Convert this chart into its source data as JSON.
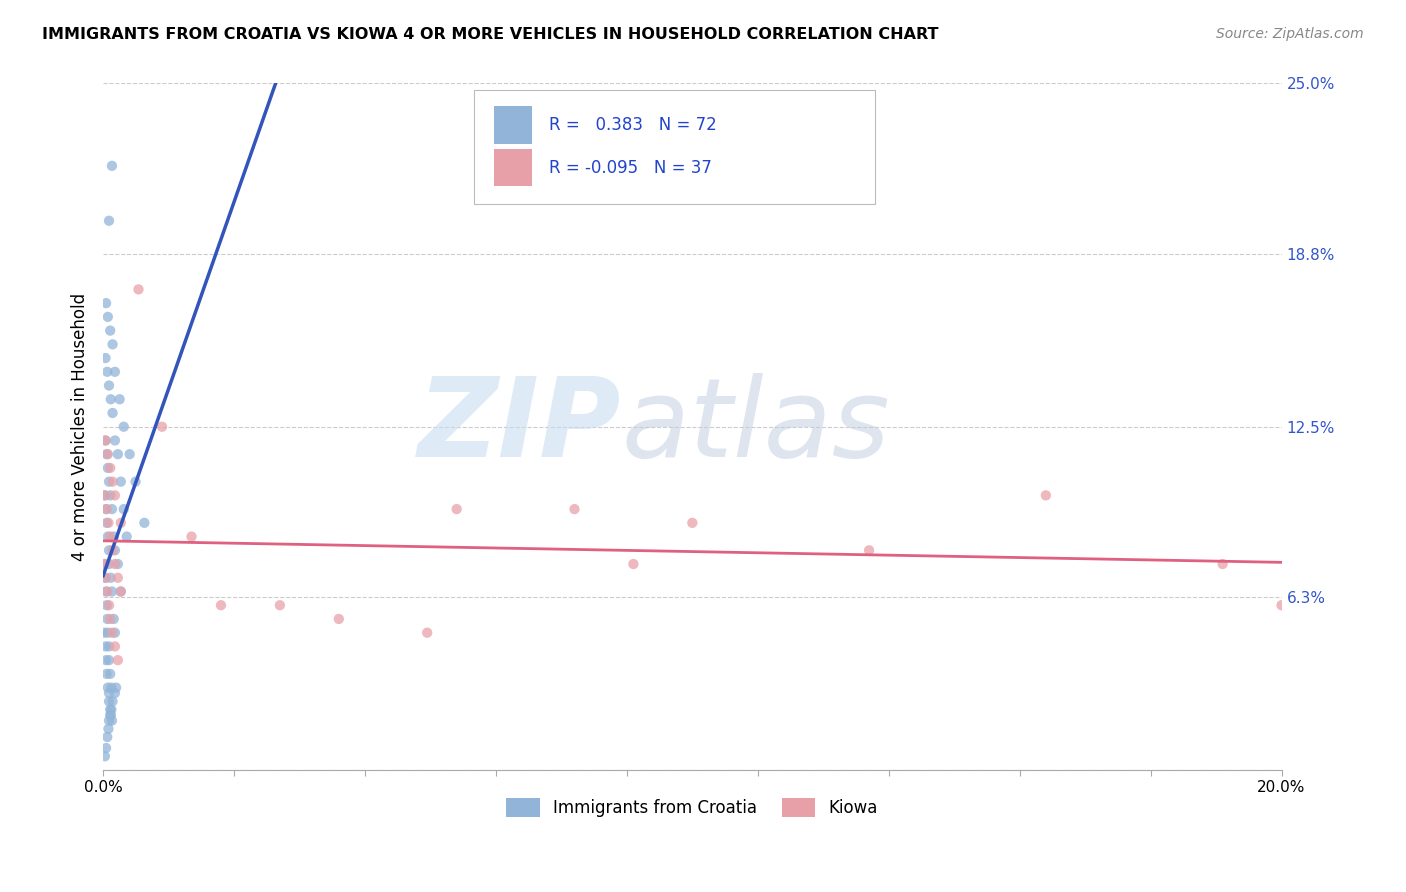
{
  "title": "IMMIGRANTS FROM CROATIA VS KIOWA 4 OR MORE VEHICLES IN HOUSEHOLD CORRELATION CHART",
  "source": "Source: ZipAtlas.com",
  "ylabel": "4 or more Vehicles in Household",
  "legend_label_1": "Immigrants from Croatia",
  "legend_label_2": "Kiowa",
  "r1": 0.383,
  "n1": 72,
  "r2": -0.095,
  "n2": 37,
  "color_blue": "#92b4d8",
  "color_pink": "#e8a0a8",
  "line_blue": "#3355bb",
  "line_pink": "#e06080",
  "background": "#ffffff",
  "grid_color": "#cccccc",
  "xlim": [
    0.0,
    0.2
  ],
  "ylim": [
    0.0,
    0.25
  ],
  "blue_scatter_x": [
    0.0002,
    0.0004,
    0.0005,
    0.0006,
    0.0008,
    0.001,
    0.001,
    0.0012,
    0.0013,
    0.0015,
    0.0002,
    0.0003,
    0.0005,
    0.0006,
    0.0007,
    0.0008,
    0.001,
    0.001,
    0.0012,
    0.0014,
    0.0003,
    0.0005,
    0.0006,
    0.0008,
    0.001,
    0.001,
    0.0013,
    0.0015,
    0.0018,
    0.002,
    0.0003,
    0.0005,
    0.0007,
    0.0009,
    0.001,
    0.0012,
    0.0014,
    0.0016,
    0.002,
    0.0022,
    0.0004,
    0.0006,
    0.0008,
    0.001,
    0.0012,
    0.0015,
    0.0018,
    0.002,
    0.0025,
    0.003,
    0.0004,
    0.0007,
    0.001,
    0.0013,
    0.0016,
    0.002,
    0.0025,
    0.003,
    0.0035,
    0.004,
    0.0005,
    0.0008,
    0.0012,
    0.0016,
    0.002,
    0.0028,
    0.0035,
    0.0045,
    0.0055,
    0.007,
    0.001,
    0.0015
  ],
  "blue_scatter_y": [
    0.05,
    0.045,
    0.04,
    0.035,
    0.03,
    0.028,
    0.025,
    0.022,
    0.02,
    0.018,
    0.075,
    0.07,
    0.065,
    0.06,
    0.055,
    0.05,
    0.045,
    0.04,
    0.035,
    0.03,
    0.1,
    0.095,
    0.09,
    0.085,
    0.08,
    0.075,
    0.07,
    0.065,
    0.055,
    0.05,
    0.005,
    0.008,
    0.012,
    0.015,
    0.018,
    0.02,
    0.022,
    0.025,
    0.028,
    0.03,
    0.12,
    0.115,
    0.11,
    0.105,
    0.1,
    0.095,
    0.085,
    0.08,
    0.075,
    0.065,
    0.15,
    0.145,
    0.14,
    0.135,
    0.13,
    0.12,
    0.115,
    0.105,
    0.095,
    0.085,
    0.17,
    0.165,
    0.16,
    0.155,
    0.145,
    0.135,
    0.125,
    0.115,
    0.105,
    0.09,
    0.2,
    0.22
  ],
  "pink_scatter_x": [
    0.0003,
    0.0005,
    0.0007,
    0.001,
    0.0012,
    0.0015,
    0.002,
    0.0025,
    0.0003,
    0.0006,
    0.0009,
    0.0012,
    0.0016,
    0.002,
    0.0025,
    0.003,
    0.0004,
    0.0008,
    0.0012,
    0.0016,
    0.002,
    0.003,
    0.006,
    0.01,
    0.015,
    0.02,
    0.03,
    0.04,
    0.055,
    0.06,
    0.08,
    0.09,
    0.1,
    0.13,
    0.16,
    0.19,
    0.2
  ],
  "pink_scatter_y": [
    0.075,
    0.07,
    0.065,
    0.06,
    0.055,
    0.05,
    0.045,
    0.04,
    0.1,
    0.095,
    0.09,
    0.085,
    0.08,
    0.075,
    0.07,
    0.065,
    0.12,
    0.115,
    0.11,
    0.105,
    0.1,
    0.09,
    0.175,
    0.125,
    0.085,
    0.06,
    0.06,
    0.055,
    0.05,
    0.095,
    0.095,
    0.075,
    0.09,
    0.08,
    0.1,
    0.075,
    0.06
  ]
}
